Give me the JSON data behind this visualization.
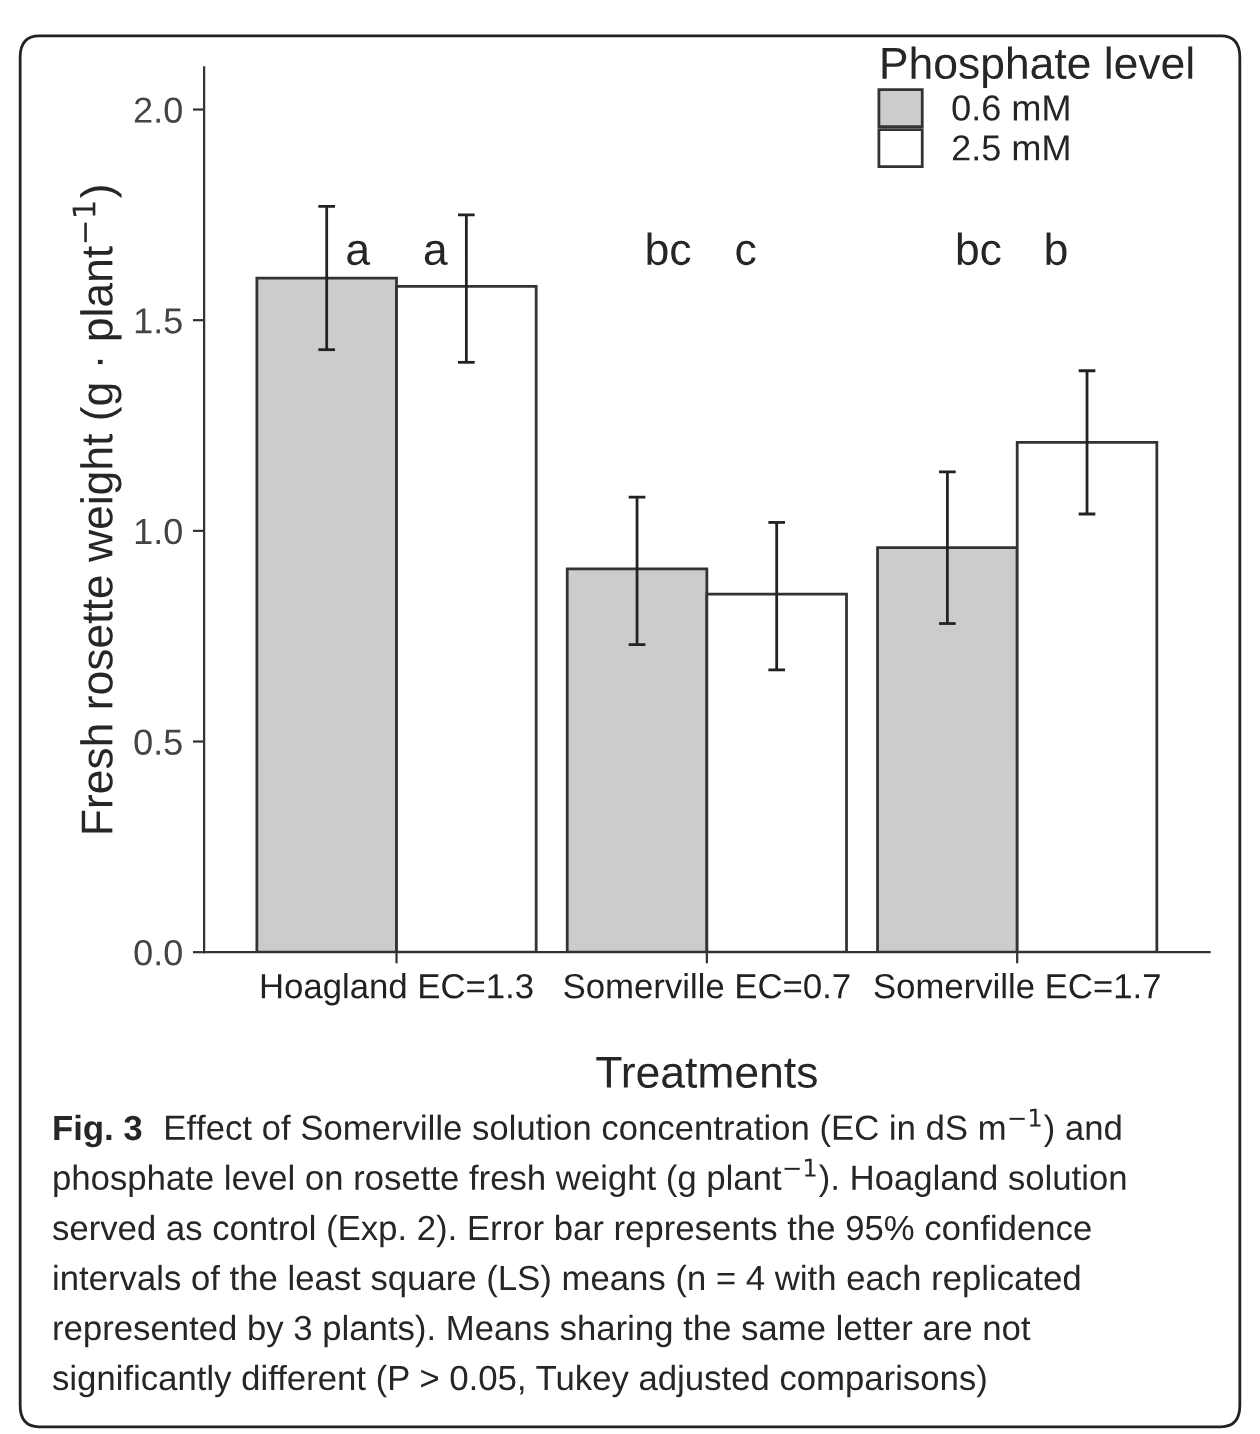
{
  "chart_data": {
    "type": "bar",
    "xlabel": "Treatments",
    "ylabel": "Fresh rosette weight (g · plant$^{−1}$)",
    "legend_title": "Phosphate level",
    "categories": [
      "Hoagland EC=1.3",
      "Somerville EC=0.7",
      "Somerville EC=1.7"
    ],
    "series": [
      {
        "name": "0.6 mM",
        "color": "#cccccc",
        "values": [
          1.6,
          0.91,
          0.96
        ],
        "errors": [
          [
            1.43,
            1.77
          ],
          [
            0.73,
            1.08
          ],
          [
            0.78,
            1.14
          ]
        ]
      },
      {
        "name": "2.5 mM",
        "color": "#ffffff",
        "values": [
          1.58,
          0.85,
          1.21
        ],
        "errors": [
          [
            1.4,
            1.75
          ],
          [
            0.67,
            1.02
          ],
          [
            1.04,
            1.38
          ]
        ]
      }
    ],
    "ylim": [
      0,
      2.1
    ],
    "yticks": [
      {
        "value": 0,
        "label": "0.0"
      },
      {
        "value": 0.5,
        "label": "0.5"
      },
      {
        "value": 1,
        "label": "1.0"
      },
      {
        "value": 1.5,
        "label": "1.5"
      },
      {
        "value": 2,
        "label": "2.0"
      }
    ],
    "grid": false,
    "legend": "top right",
    "annotations": [
      "a",
      "a",
      "bc",
      "c",
      "bc",
      "b",
      "Fig. 3",
      "Effect of Somerville solution concentration (EC in dS m$^{−1}$) and phosphate level on rosette fresh weight (g plant$^{−1}$). Hoagland solution served as control (Exp. 2). Error bar represents the 95% confidence intervals of the least square (LS) means (n = 4 with each replicated represented by 3 plants). Means sharing the same letter are not significantly different (P > 0.05, Tukey adjusted comparisons)"
    ]
  }
}
